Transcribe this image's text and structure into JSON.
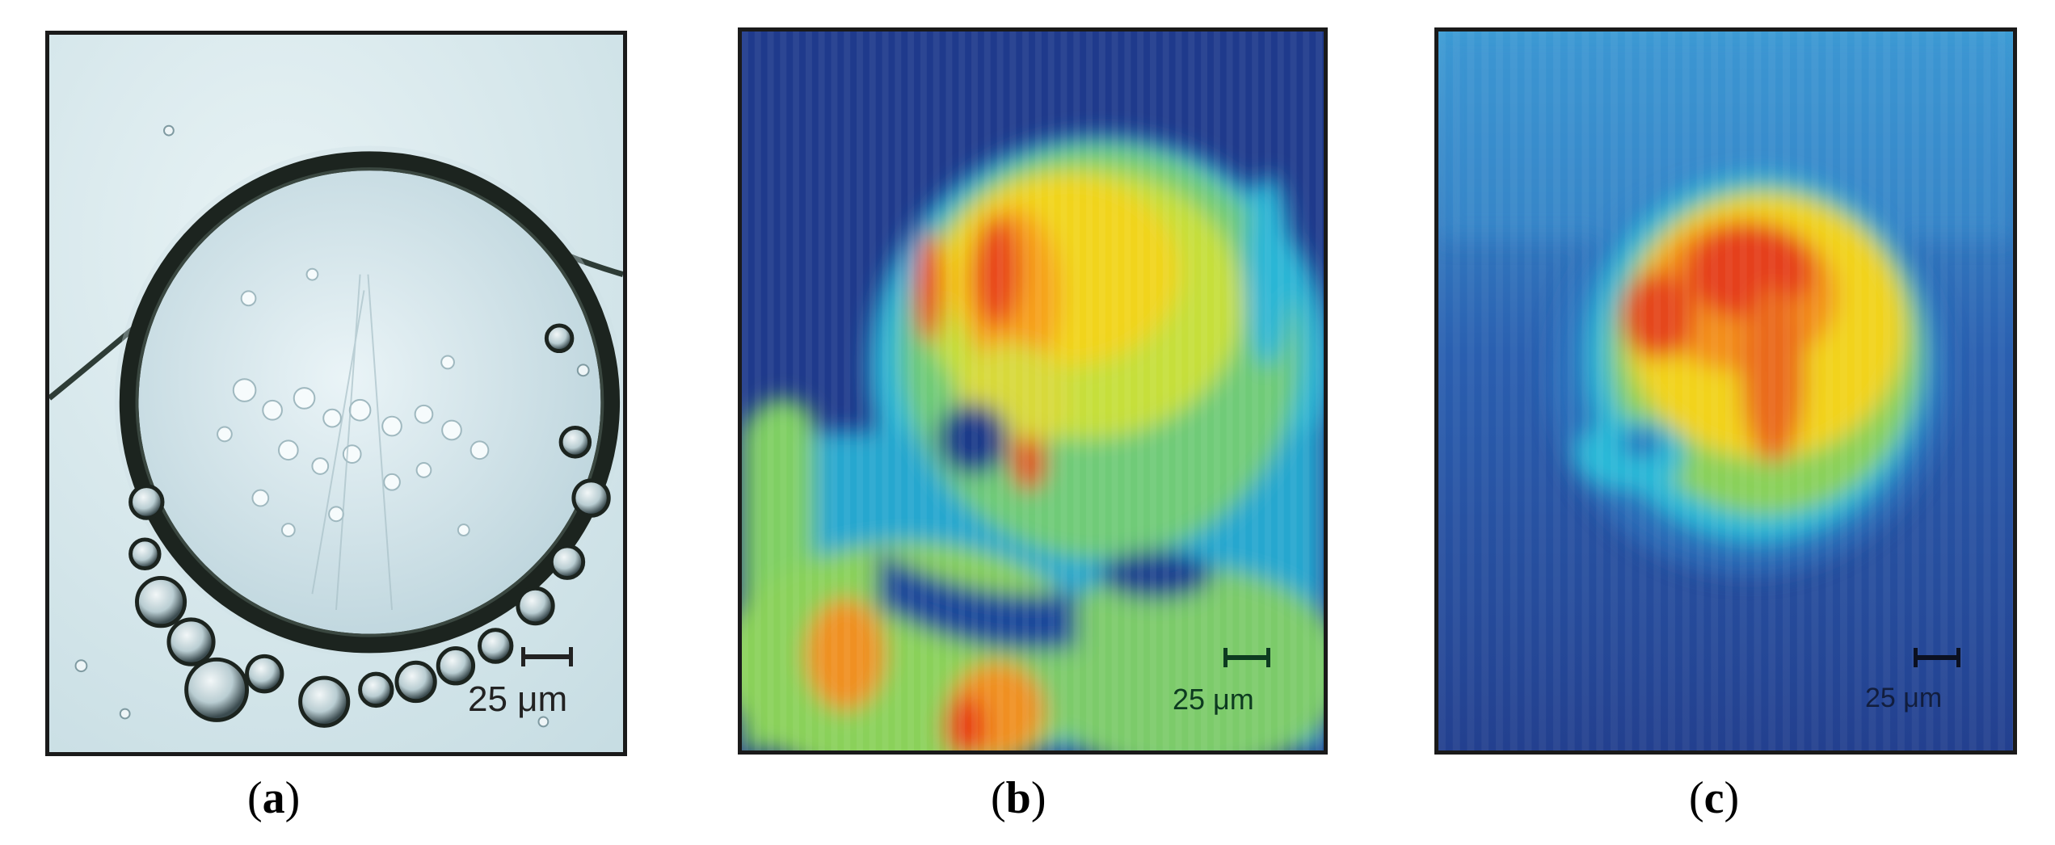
{
  "figure": {
    "panels": [
      {
        "id": "a",
        "caption_open": "(",
        "caption_letter": "a",
        "caption_close": ")",
        "scale_text": "25 μm"
      },
      {
        "id": "b",
        "caption_open": "(",
        "caption_letter": "b",
        "caption_close": ")",
        "scale_text": "25 μm"
      },
      {
        "id": "c",
        "caption_open": "(",
        "caption_letter": "c",
        "caption_close": ")",
        "scale_text": "25 μm"
      }
    ]
  },
  "colors": {
    "frame": "#1a1a1a",
    "scalebar_a": "#222222",
    "scalebar_b": "#0d3b20",
    "scalebar_c": "#0b1020"
  }
}
